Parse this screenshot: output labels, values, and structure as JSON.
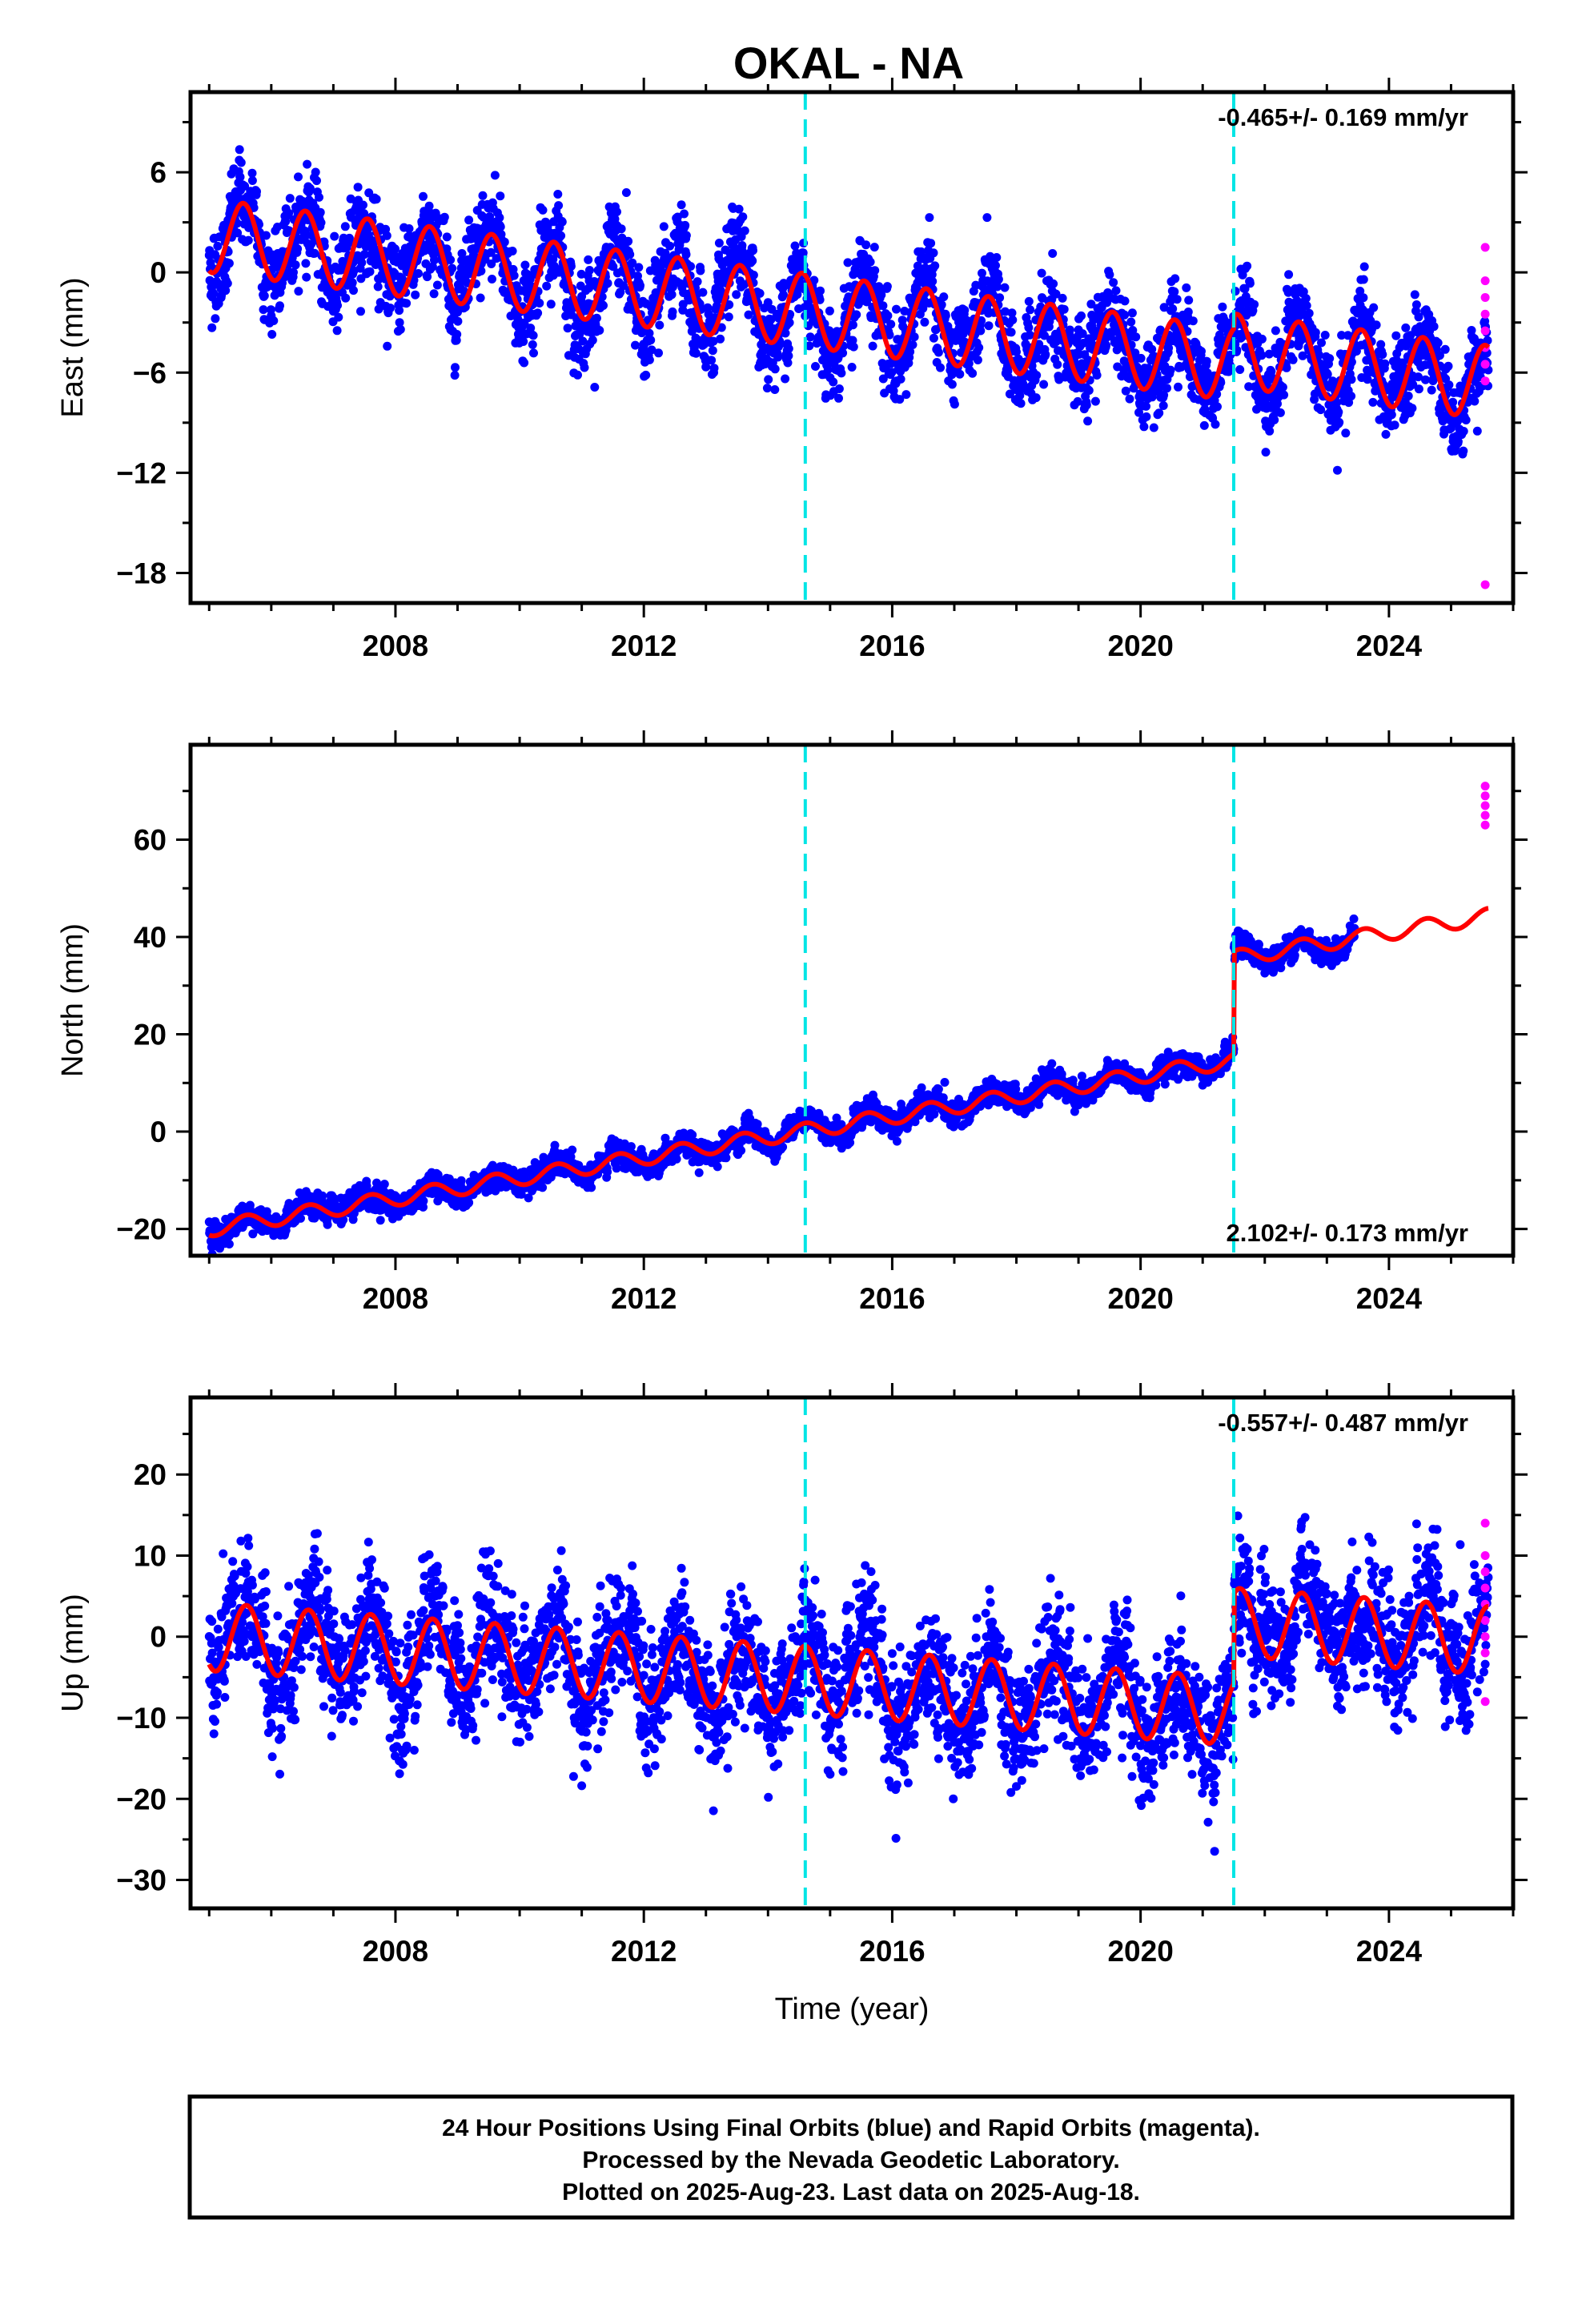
{
  "title": "OKAL - NA",
  "colors": {
    "final_orbit": "#0000ff",
    "rapid_orbit": "#ff00ff",
    "model": "#ff0000",
    "offset_marker": "#00e5e5",
    "frame": "#000000"
  },
  "footer": {
    "lines": [
      "24 Hour Positions Using Final Orbits (blue) and Rapid Orbits (magenta).",
      "Processed by the Nevada Geodetic Laboratory.",
      "Plotted on 2025-Aug-23. Last data on 2025-Aug-18."
    ]
  },
  "chart_data": [
    {
      "type": "scatter",
      "component": "east",
      "ylabel": "East (mm)",
      "xlabel": "",
      "xlim": [
        2004.7,
        2026.0
      ],
      "ylim": [
        -19.8,
        10.8
      ],
      "x_ticks": [
        2008,
        2012,
        2016,
        2020,
        2024
      ],
      "y_ticks": [
        6,
        0,
        -6,
        -12,
        -18
      ],
      "rate_label": "-0.465+/- 0.169 mm/yr",
      "offset_epochs": [
        2014.6,
        2021.5
      ],
      "model_params": {
        "start": 2005.0,
        "end": 2025.6,
        "base": 2.2,
        "rate": -0.465,
        "annual_amp": 2.2,
        "annual_phase_year": 0.55,
        "steps": [
          {
            "epoch": 2014.6,
            "delta": 0.0
          },
          {
            "epoch": 2021.5,
            "delta": 0.8
          }
        ],
        "scatter_sd": 1.6
      },
      "rapid_points": {
        "x": 2025.55,
        "values": [
          1.5,
          -0.5,
          -1.5,
          -2.5,
          -3.5,
          -4.5,
          -5.5,
          -6.5,
          -18.7
        ]
      }
    },
    {
      "type": "scatter",
      "component": "north",
      "ylabel": "North (mm)",
      "xlabel": "",
      "xlim": [
        2004.7,
        2026.0
      ],
      "ylim": [
        -25.5,
        79.5
      ],
      "x_ticks": [
        2008,
        2012,
        2016,
        2020,
        2024
      ],
      "y_ticks": [
        60,
        40,
        20,
        0,
        -20
      ],
      "rate_label": "2.102+/- 0.173 mm/yr",
      "offset_epochs": [
        2014.6,
        2021.5
      ],
      "model_params": {
        "start": 2005.0,
        "end": 2025.6,
        "base": -20.0,
        "rate": 2.102,
        "annual_amp": 1.6,
        "annual_phase_year": 0.6,
        "steps": [
          {
            "epoch": 2014.6,
            "delta": 0.0
          },
          {
            "epoch": 2021.5,
            "delta": 21.0
          }
        ],
        "scatter_sd": 1.5
      },
      "data_offsets": [
        {
          "from": 2023.6,
          "delta": 45.0
        }
      ],
      "rapid_points": {
        "x": 2025.55,
        "values": [
          71.0,
          69.0,
          67.0,
          65.0,
          63.0
        ]
      }
    },
    {
      "type": "scatter",
      "component": "up",
      "ylabel": "Up (mm)",
      "xlabel": "Time (year)",
      "xlim": [
        2004.7,
        2026.0
      ],
      "ylim": [
        -33.5,
        29.5
      ],
      "x_ticks": [
        2008,
        2012,
        2016,
        2020,
        2024
      ],
      "y_ticks": [
        20,
        10,
        0,
        -10,
        -20,
        -30
      ],
      "rate_label": "-0.557+/- 0.487 mm/yr",
      "offset_epochs": [
        2014.6,
        2021.5
      ],
      "model_params": {
        "start": 2005.0,
        "end": 2025.6,
        "base": 0.0,
        "rate": -0.557,
        "annual_amp": 4.2,
        "annual_phase_year": 0.6,
        "steps": [
          {
            "epoch": 2014.6,
            "delta": 0.0
          },
          {
            "epoch": 2021.5,
            "delta": 11.0
          }
        ],
        "scatter_sd": 4.5
      },
      "rapid_points": {
        "x": 2025.55,
        "values": [
          14.0,
          10.0,
          8.0,
          6.0,
          4.0,
          2.0,
          0.0,
          -2.0,
          -8.0
        ]
      }
    }
  ]
}
